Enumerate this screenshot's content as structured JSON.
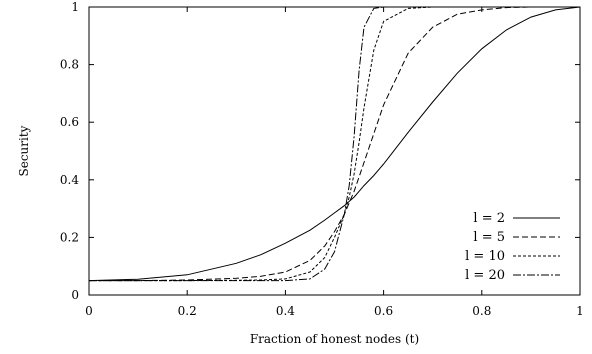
{
  "chart_data": {
    "type": "line",
    "title": "",
    "xlabel": "Fraction of honest nodes (t)",
    "ylabel": "Security",
    "xlim": [
      0,
      1
    ],
    "ylim": [
      0,
      1
    ],
    "xticks": [
      0,
      0.2,
      0.4,
      0.6,
      0.8,
      1
    ],
    "yticks": [
      0,
      0.2,
      0.4,
      0.6,
      0.8,
      1
    ],
    "xtick_labels": [
      "0",
      "0.2",
      "0.4",
      "0.6",
      "0.8",
      "1"
    ],
    "ytick_labels": [
      "0",
      "0.2",
      "0.4",
      "0.6",
      "0.8",
      "1"
    ],
    "grid": false,
    "legend_position": "bottom-right",
    "x": [
      0,
      0.1,
      0.2,
      0.3,
      0.35,
      0.4,
      0.45,
      0.48,
      0.5,
      0.52,
      0.53,
      0.54,
      0.55,
      0.56,
      0.58,
      0.6,
      0.65,
      0.7,
      0.75,
      0.8,
      0.85,
      0.9,
      0.95,
      1
    ],
    "series": [
      {
        "name": "l = 2",
        "dash": "solid",
        "values": [
          0.05,
          0.055,
          0.07,
          0.11,
          0.14,
          0.18,
          0.225,
          0.26,
          0.285,
          0.31,
          0.325,
          0.34,
          0.36,
          0.38,
          0.415,
          0.455,
          0.565,
          0.67,
          0.77,
          0.855,
          0.92,
          0.965,
          0.99,
          1.0
        ]
      },
      {
        "name": "l = 5",
        "dash": "6,3",
        "values": [
          0.05,
          0.05,
          0.052,
          0.058,
          0.065,
          0.08,
          0.12,
          0.17,
          0.22,
          0.28,
          0.32,
          0.36,
          0.41,
          0.46,
          0.56,
          0.66,
          0.84,
          0.93,
          0.975,
          0.99,
          0.998,
          1.0,
          1.0,
          1.0
        ]
      },
      {
        "name": "l = 10",
        "dash": "3,2",
        "values": [
          0.05,
          0.05,
          0.05,
          0.051,
          0.052,
          0.056,
          0.08,
          0.13,
          0.2,
          0.28,
          0.34,
          0.42,
          0.53,
          0.65,
          0.85,
          0.95,
          0.995,
          1.0,
          1.0,
          1.0,
          1.0,
          1.0,
          1.0,
          1.0
        ]
      },
      {
        "name": "l = 20",
        "dash": "8,2,2,2",
        "values": [
          0.05,
          0.05,
          0.05,
          0.05,
          0.05,
          0.05,
          0.056,
          0.09,
          0.15,
          0.28,
          0.38,
          0.55,
          0.78,
          0.93,
          0.995,
          1.0,
          1.0,
          1.0,
          1.0,
          1.0,
          1.0,
          1.0,
          1.0,
          1.0
        ]
      }
    ]
  }
}
